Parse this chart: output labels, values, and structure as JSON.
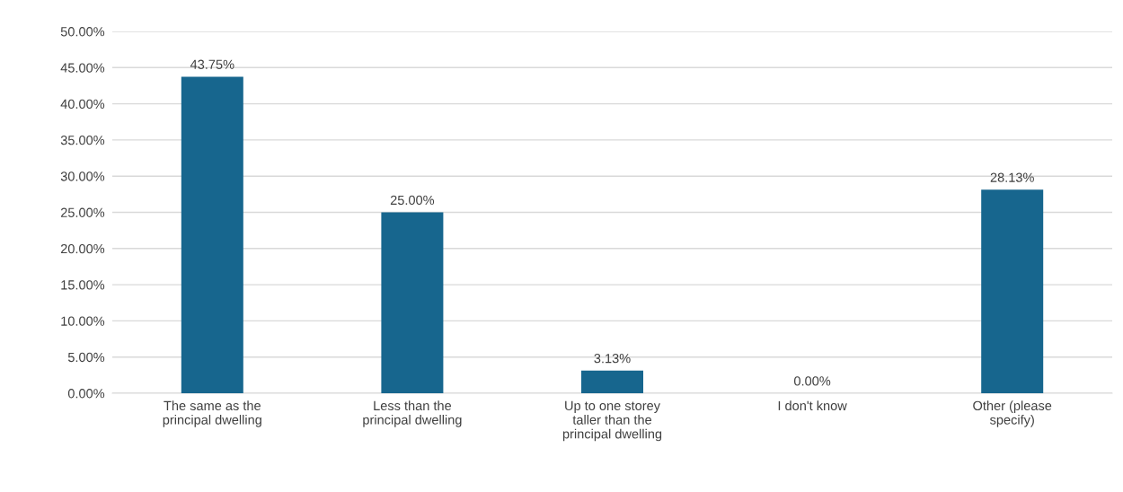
{
  "chart_data": {
    "type": "bar",
    "categories": [
      "The same as the\nprincipal dwelling",
      "Less than the\nprincipal dwelling",
      "Up to one storey\ntaller than the\nprincipal dwelling",
      "I don't know",
      "Other (please\nspecify)"
    ],
    "values": [
      43.75,
      25.0,
      3.13,
      0.0,
      28.13
    ],
    "value_labels": [
      "43.75%",
      "25.00%",
      "3.13%",
      "0.00%",
      "28.13%"
    ],
    "color": "#17668e",
    "ylim": [
      0,
      50
    ],
    "yticks": [
      {
        "value": 0,
        "label": "0.00%"
      },
      {
        "value": 5,
        "label": "5.00%"
      },
      {
        "value": 10,
        "label": "10.00%"
      },
      {
        "value": 15,
        "label": "15.00%"
      },
      {
        "value": 20,
        "label": "20.00%"
      },
      {
        "value": 25,
        "label": "25.00%"
      },
      {
        "value": 30,
        "label": "30.00%"
      },
      {
        "value": 35,
        "label": "35.00%"
      },
      {
        "value": 40,
        "label": "40.00%"
      },
      {
        "value": 45,
        "label": "45.00%"
      },
      {
        "value": 50,
        "label": "50.00%"
      }
    ],
    "grid": "y",
    "legend": false
  }
}
